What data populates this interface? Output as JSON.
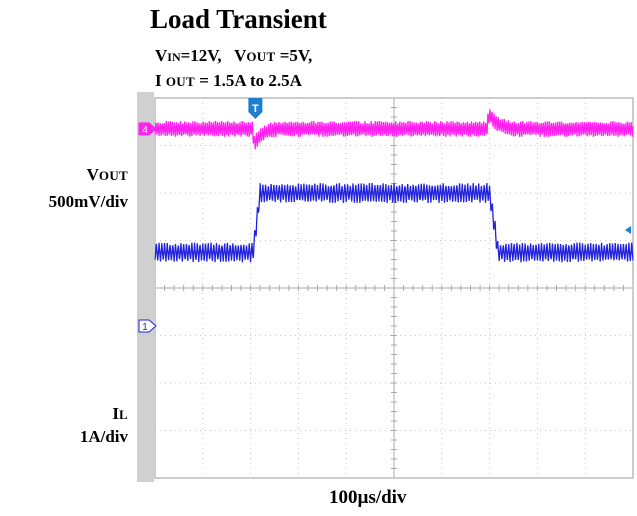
{
  "title": "Load Transient",
  "conditions": {
    "vin_main": "V",
    "vin_sub": "IN",
    "vin_value": "=12V,",
    "vout_main": "V",
    "vout_sub": "OUT",
    "vout_value": "=5V,",
    "iout_main": "I",
    "iout_sub": "OUT",
    "iout_value": "= 1.5A to 2.5A"
  },
  "channels": {
    "vout": {
      "name_main": "V",
      "name_sub": "OUT",
      "scale": "500mV/div",
      "color": "#ff22ee",
      "marker": "4"
    },
    "il": {
      "name_main": "I",
      "name_sub": "L",
      "scale": "1A/div",
      "color": "#2222dd",
      "marker": "1"
    }
  },
  "trigger_marker": "T",
  "trigger_color": "#1e7fd0",
  "timebase": "100µs/div",
  "chart_data": {
    "type": "line",
    "title": "Load Transient",
    "xlabel": "100µs/div",
    "x_divisions": 10,
    "y_divisions": 8,
    "grid": true,
    "load_step": {
      "rise_div": 2.05,
      "fall_div": 7.0
    },
    "series": [
      {
        "name": "VOUT",
        "unit": "mV",
        "scale_per_div": 500,
        "steady_div": 3.35,
        "ripple_pp_div": 0.28,
        "undershoot_div": 0.38,
        "overshoot_div": 0.42,
        "recovery_div": 0.5
      },
      {
        "name": "IL",
        "unit": "A",
        "scale_per_div": 1,
        "low_level_div": 0.75,
        "high_level_div": 2.0,
        "ripple_pp_div": 0.35
      }
    ]
  }
}
